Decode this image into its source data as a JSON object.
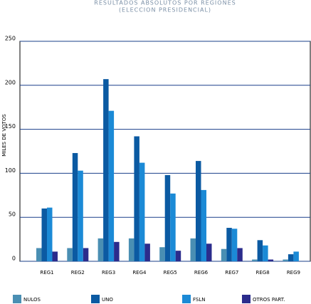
{
  "chart_data": {
    "type": "bar",
    "title": "RESULTADOS ABSOLUTOS POR REGIONES",
    "subtitle": "(ELECCION PRESIDENCIAL)",
    "y_label": "MILES DE VOTOS",
    "categories": [
      "REG1",
      "REG2",
      "REG3",
      "REG4",
      "REG5",
      "REG6",
      "REG7",
      "REG8",
      "REG9"
    ],
    "series": [
      {
        "name": "NULOS",
        "color": "#4a8fb3",
        "values": [
          15,
          15,
          26,
          26,
          16,
          26,
          14,
          2,
          2
        ]
      },
      {
        "name": "UNO",
        "color": "#0b5aa2",
        "values": [
          60,
          123,
          207,
          142,
          98,
          114,
          38,
          24,
          8
        ]
      },
      {
        "name": "FSLN",
        "color": "#1b8ad6",
        "values": [
          61,
          103,
          171,
          112,
          77,
          81,
          37,
          18,
          11
        ]
      },
      {
        "name": "OTROS PART.",
        "color": "#2b2c8c",
        "values": [
          11,
          15,
          22,
          20,
          12,
          20,
          15,
          2,
          0
        ]
      }
    ],
    "ylim": [
      0,
      250
    ],
    "yticks": [
      0,
      50,
      100,
      150,
      200,
      250
    ],
    "grid": true,
    "legend": "bottom"
  }
}
